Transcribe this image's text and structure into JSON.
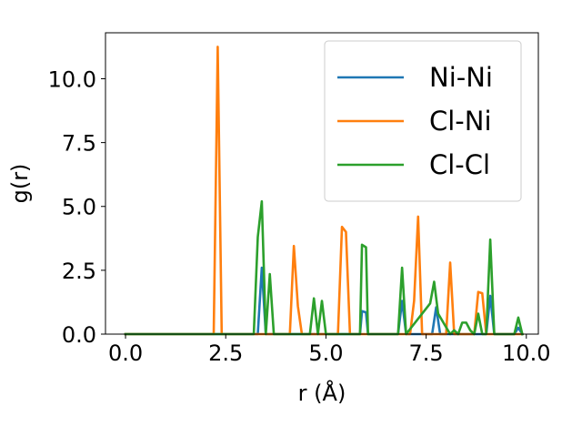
{
  "chart_data": {
    "type": "line",
    "title": "",
    "xlabel": "r (Å)",
    "ylabel": "g(r)",
    "xlim": [
      -0.5,
      10.3
    ],
    "ylim": [
      0,
      11.8
    ],
    "xticks": [
      0,
      2.5,
      5,
      7.5,
      10
    ],
    "xtick_labels": [
      "0.0",
      "2.5",
      "5.0",
      "7.5",
      "10.0"
    ],
    "yticks": [
      0,
      2.5,
      5,
      7.5,
      10
    ],
    "ytick_labels": [
      "0.0",
      "2.5",
      "5.0",
      "7.5",
      "10.0"
    ],
    "grid": false,
    "legend_position": "upper-right",
    "series": [
      {
        "name": "Ni-Ni",
        "color": "#1f77b4",
        "x": [
          0,
          3.3,
          3.4,
          3.5,
          3.6,
          5.85,
          5.9,
          6.0,
          6.05,
          6.8,
          6.9,
          7.0,
          7.65,
          7.75,
          7.85,
          9.0,
          9.1,
          9.2,
          9.7,
          9.8,
          9.9
        ],
        "y": [
          0,
          0,
          2.6,
          0,
          0,
          0,
          0.9,
          0.85,
          0,
          0,
          1.3,
          0,
          0,
          1.05,
          0,
          0,
          1.5,
          0,
          0,
          0.25,
          0
        ]
      },
      {
        "name": "Cl-Ni",
        "color": "#ff7f0e",
        "x": [
          0,
          2.2,
          2.3,
          2.4,
          4.1,
          4.2,
          4.3,
          4.4,
          5.3,
          5.4,
          5.5,
          5.6,
          7.1,
          7.2,
          7.3,
          7.4,
          8.0,
          8.1,
          8.2,
          8.7,
          8.8,
          8.9,
          9.0,
          9.9
        ],
        "y": [
          0,
          0,
          11.25,
          0,
          0,
          3.45,
          1.1,
          0,
          0,
          4.2,
          4.0,
          0,
          0,
          1.3,
          4.6,
          0,
          0,
          2.8,
          0,
          0,
          1.65,
          1.6,
          0,
          0
        ]
      },
      {
        "name": "Cl-Cl",
        "color": "#2ca02c",
        "x": [
          0,
          3.2,
          3.3,
          3.4,
          3.5,
          3.6,
          3.7,
          4.6,
          4.7,
          4.8,
          4.9,
          5.0,
          5.85,
          5.9,
          6.0,
          6.05,
          6.8,
          6.9,
          7.0,
          7.6,
          7.7,
          7.8,
          8.1,
          8.2,
          8.3,
          8.4,
          8.5,
          8.6,
          8.7,
          8.8,
          8.9,
          9.0,
          9.1,
          9.2,
          9.7,
          9.8,
          9.9
        ],
        "y": [
          0,
          0,
          3.8,
          5.2,
          0,
          2.35,
          0,
          0,
          1.4,
          0,
          1.3,
          0,
          0,
          3.5,
          3.4,
          0,
          0,
          2.6,
          0,
          1.2,
          2.05,
          0.8,
          0,
          0.15,
          0,
          0.45,
          0.45,
          0.15,
          0,
          0.8,
          0,
          0,
          3.7,
          0,
          0,
          0.65,
          0
        ]
      }
    ]
  }
}
